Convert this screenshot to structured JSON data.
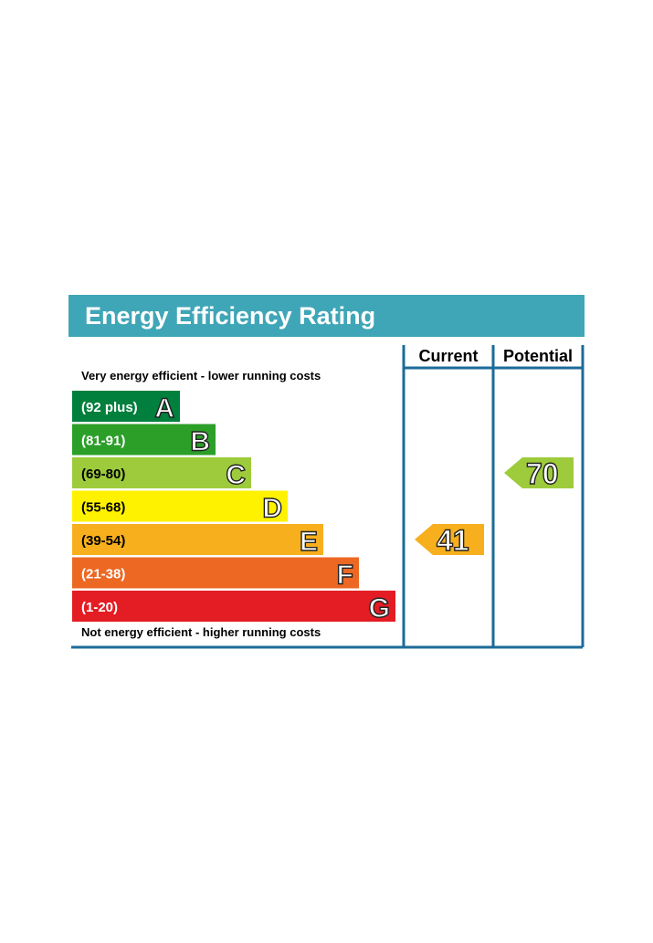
{
  "title": "Energy Efficiency Rating",
  "column_headers": {
    "current": "Current",
    "potential": "Potential"
  },
  "top_note": "Very energy efficient - lower running costs",
  "bottom_note": "Not energy efficient - higher running costs",
  "colors": {
    "header_bg": "#3fa6b7",
    "frame": "#1b6b9a",
    "A": "#007f3d",
    "B": "#2c9f29",
    "C": "#9dcb3b",
    "D": "#fff200",
    "E": "#f7af1d",
    "F": "#ed6823",
    "G": "#e31d23"
  },
  "chart_data": {
    "type": "bar",
    "bands": [
      {
        "letter": "A",
        "range": "(92 plus)",
        "min": 92,
        "max": 100
      },
      {
        "letter": "B",
        "range": "(81-91)",
        "min": 81,
        "max": 91
      },
      {
        "letter": "C",
        "range": "(69-80)",
        "min": 69,
        "max": 80
      },
      {
        "letter": "D",
        "range": "(55-68)",
        "min": 55,
        "max": 68
      },
      {
        "letter": "E",
        "range": "(39-54)",
        "min": 39,
        "max": 54
      },
      {
        "letter": "F",
        "range": "(21-38)",
        "min": 21,
        "max": 38
      },
      {
        "letter": "G",
        "range": "(1-20)",
        "min": 1,
        "max": 20
      }
    ],
    "current": {
      "value": 41,
      "label": "41",
      "band": "E"
    },
    "potential": {
      "value": 70,
      "label": "70",
      "band": "C"
    }
  }
}
